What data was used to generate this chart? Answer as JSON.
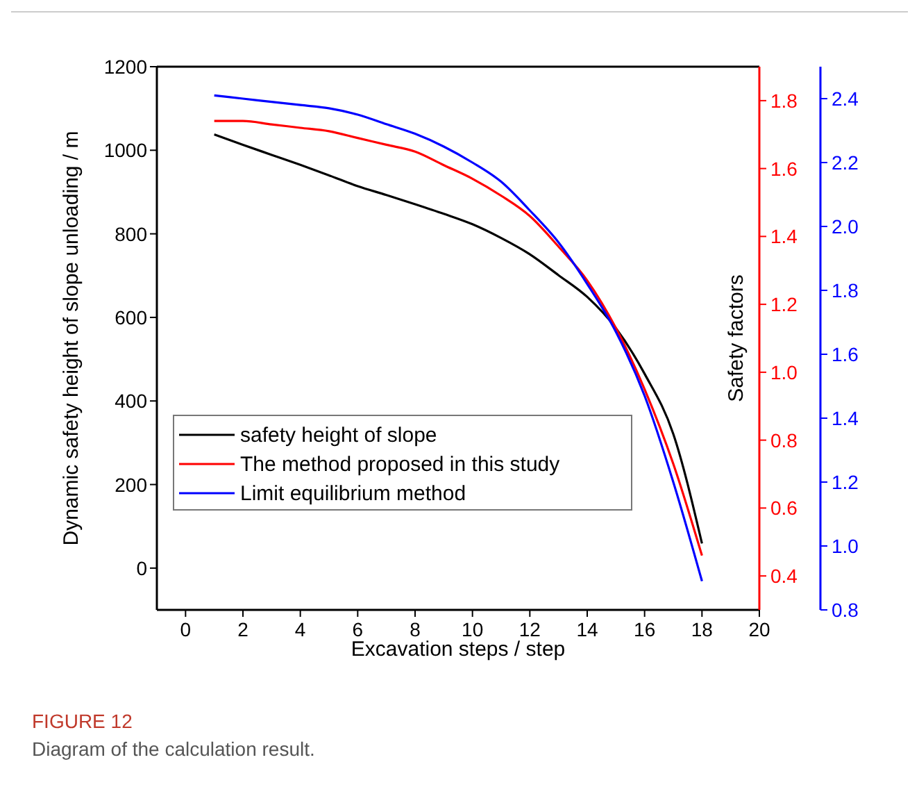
{
  "chart_data": {
    "type": "line",
    "title": "FIGURE 12",
    "subtitle": "Diagram of the calculation result.",
    "xlabel": "Excavation steps / step",
    "ylabel": "Dynamic safety height of slope unloading / m",
    "y2label": "Safety factors",
    "x": [
      1,
      2,
      3,
      4,
      5,
      6,
      7,
      8,
      9,
      10,
      11,
      12,
      13,
      14,
      15,
      16,
      17,
      18
    ],
    "xlim": [
      -1,
      20
    ],
    "xticks": [
      0,
      2,
      4,
      6,
      8,
      10,
      12,
      14,
      16,
      18,
      20
    ],
    "ylim": [
      -100,
      1200
    ],
    "yticks": [
      0,
      200,
      400,
      600,
      800,
      1000,
      1200
    ],
    "y2lim": [
      0.3,
      1.9
    ],
    "y2ticks": [
      0.4,
      0.6,
      0.8,
      {
        "value": 1,
        "label": "1.0"
      },
      1.2,
      1.4,
      1.6,
      1.8
    ],
    "y3lim": [
      0.8,
      2.5
    ],
    "y3ticks": [
      0.8,
      {
        "value": 1,
        "label": "1.0"
      },
      1.2,
      1.4,
      1.6,
      1.8,
      {
        "value": 2,
        "label": "2.0"
      },
      2.2,
      2.4
    ],
    "legend": "bottom left",
    "grid": false,
    "marker": "none",
    "line_style": "solid",
    "series": [
      {
        "name": "safety height of slope",
        "color": "#000000",
        "values": [
          1038,
          1013,
          989,
          965,
          940,
          914,
          893,
          871,
          848,
          823,
          790,
          751,
          701,
          649,
          574,
          465,
          321,
          59
        ]
      },
      {
        "name": "The method proposed in this study",
        "color": "#ff0000",
        "axis": "y2",
        "values": [
          1.74,
          1.74,
          1.73,
          1.72,
          1.71,
          1.69,
          1.67,
          1.65,
          1.61,
          1.57,
          1.52,
          1.46,
          1.37,
          1.27,
          1.13,
          0.95,
          0.73,
          0.46
        ]
      },
      {
        "name": "Limit equilibrium method",
        "color": "#0000ff",
        "axis": "y3",
        "values": [
          2.41,
          2.4,
          2.39,
          2.38,
          2.37,
          2.35,
          2.32,
          2.29,
          2.25,
          2.2,
          2.14,
          2.05,
          1.95,
          1.82,
          1.67,
          1.47,
          1.2,
          0.89
        ]
      }
    ]
  }
}
